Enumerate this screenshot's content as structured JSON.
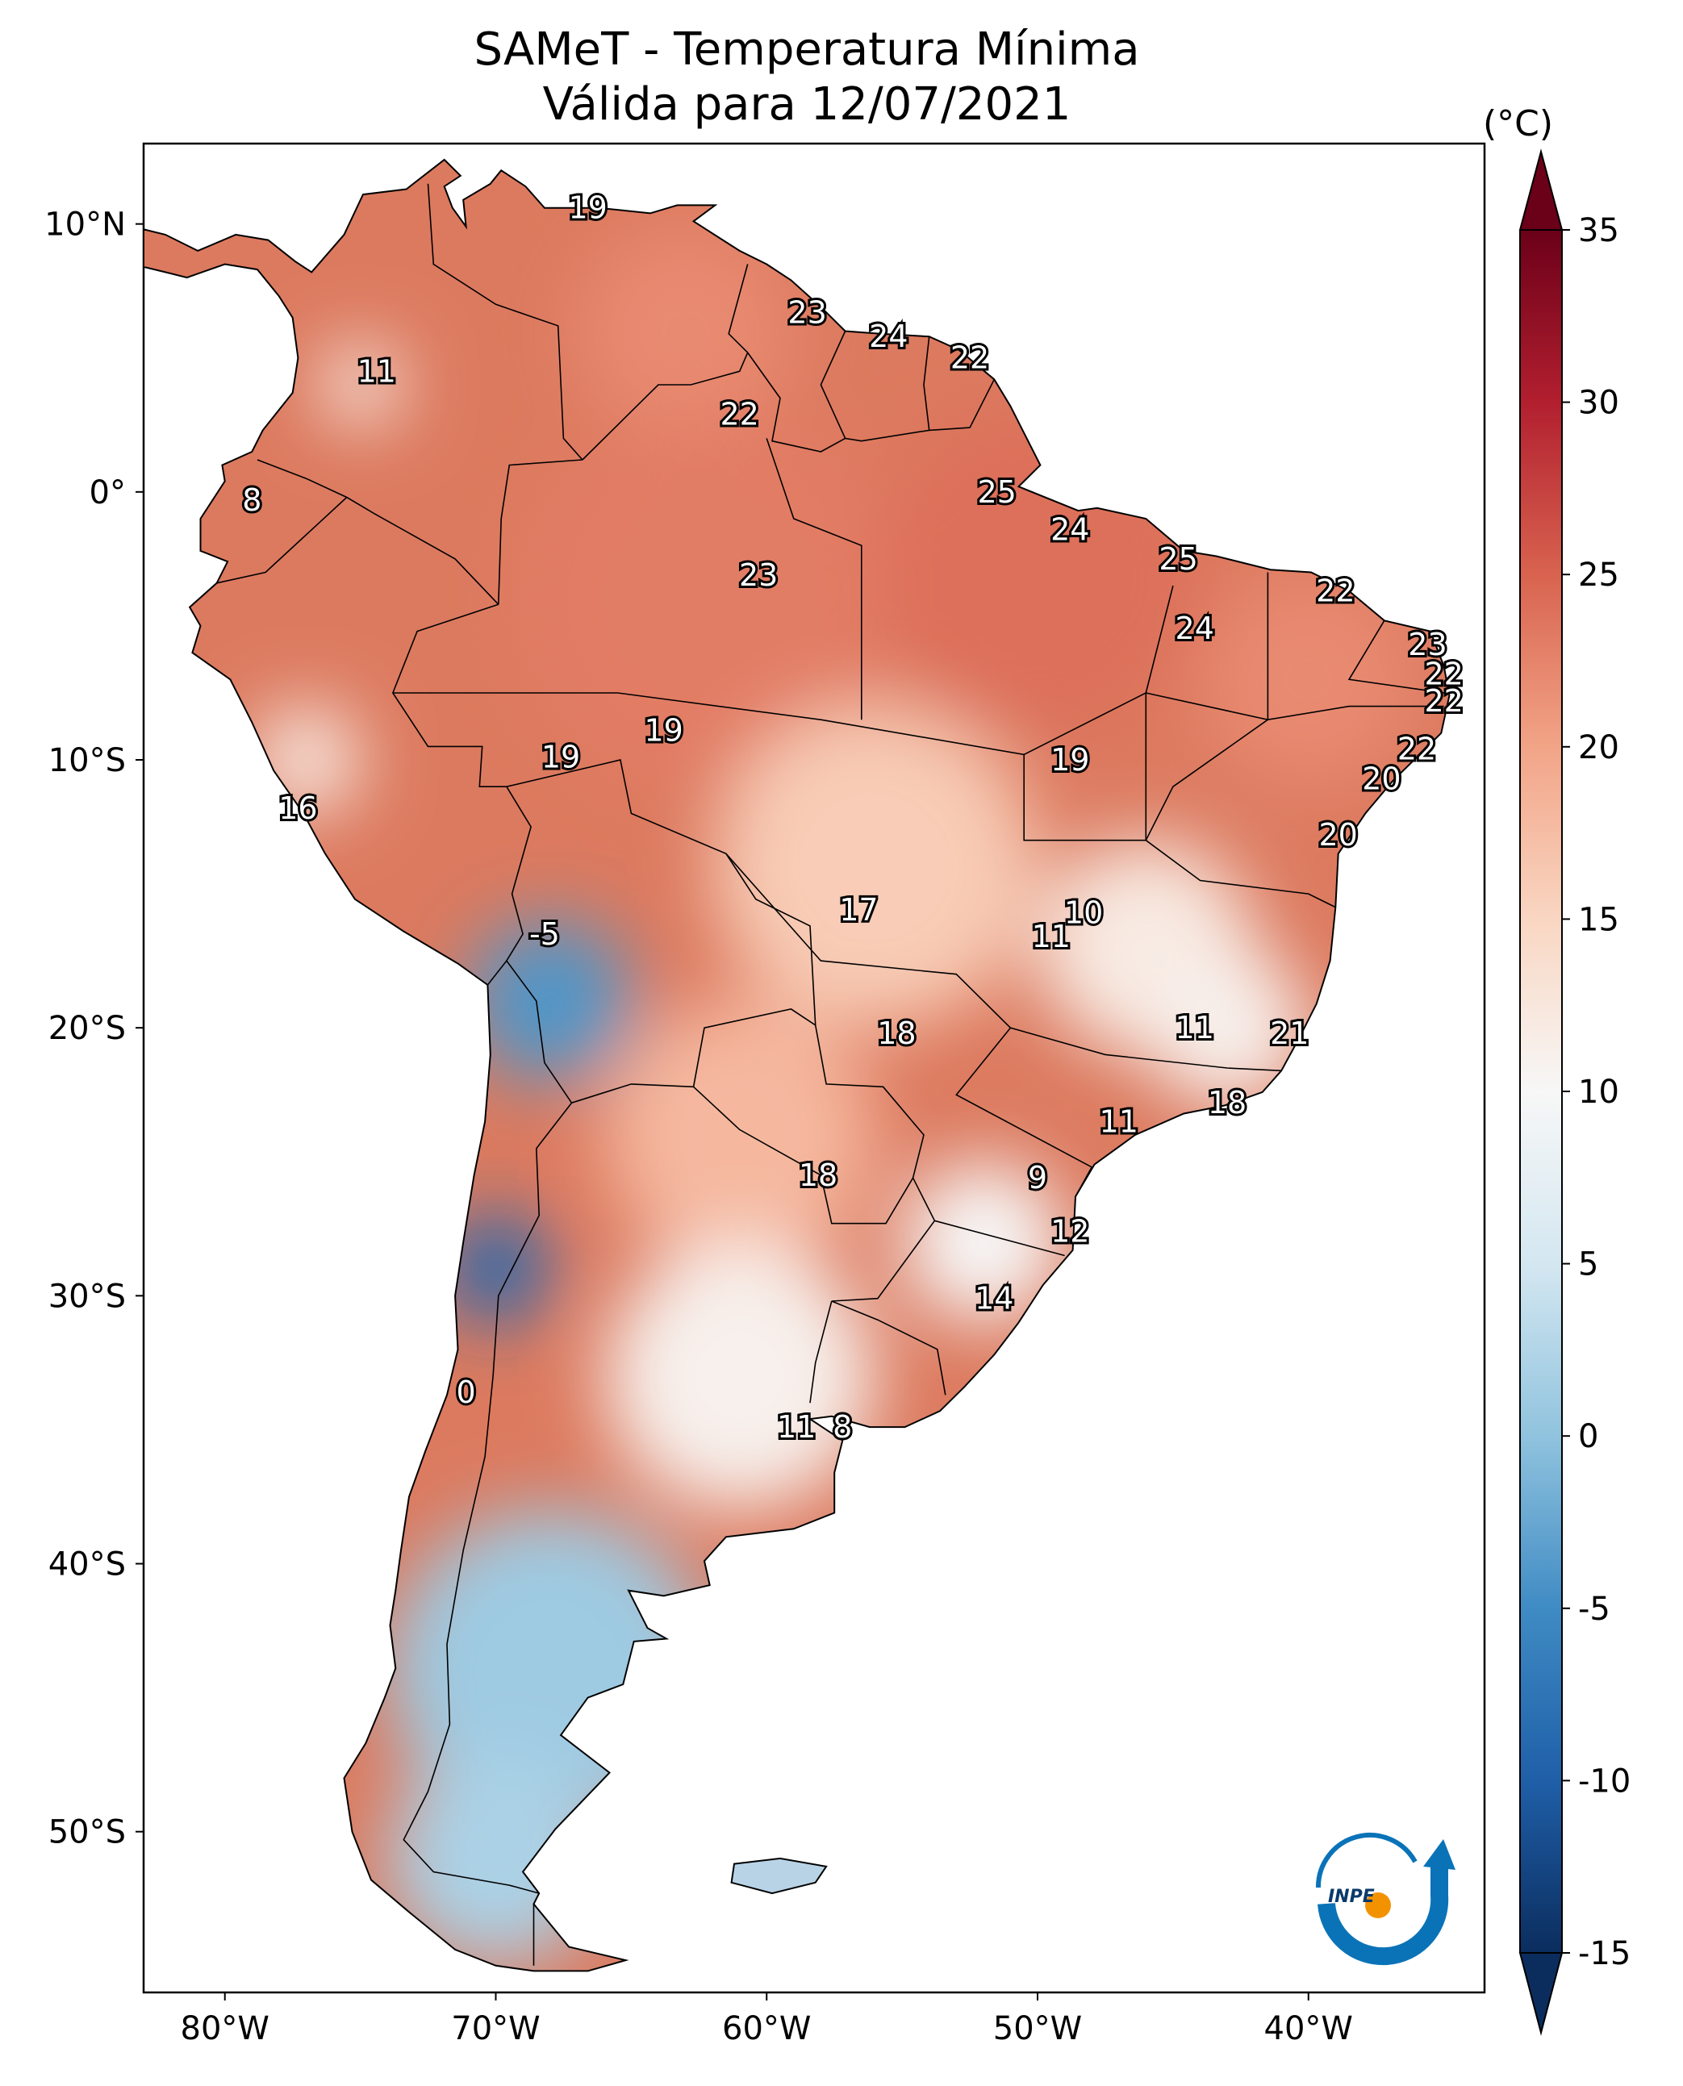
{
  "title": {
    "line1": "SAMeT - Temperatura Mínima",
    "line2": "Válida para 12/07/2021"
  },
  "colorbar": {
    "unit": "(°C)",
    "ticks": [
      "35",
      "30",
      "25",
      "20",
      "15",
      "10",
      "5",
      "0",
      "-5",
      "-10",
      "-15"
    ],
    "tick_values": [
      35,
      30,
      25,
      20,
      15,
      10,
      5,
      0,
      -5,
      -10,
      -15
    ],
    "range": [
      -15,
      35
    ],
    "colormap": "RdBu_r"
  },
  "axes": {
    "lat_labels": [
      "10°N",
      "0°",
      "10°S",
      "20°S",
      "30°S",
      "40°S",
      "50°S"
    ],
    "lat_values": [
      10,
      0,
      -10,
      -20,
      -30,
      -40,
      -50
    ],
    "lon_labels": [
      "80°W",
      "70°W",
      "60°W",
      "50°W",
      "40°W"
    ],
    "lon_values": [
      -80,
      -70,
      -60,
      -50,
      -40
    ],
    "extent": {
      "lon_min": -83,
      "lon_max": -33.5,
      "lat_min": -56,
      "lat_max": 13
    }
  },
  "point_labels": [
    {
      "text": "19",
      "lon": -66.6,
      "lat": 10.6
    },
    {
      "text": "11",
      "lon": -74.4,
      "lat": 4.5
    },
    {
      "text": "23",
      "lon": -58.5,
      "lat": 6.7
    },
    {
      "text": "24",
      "lon": -55.5,
      "lat": 5.8
    },
    {
      "text": "22",
      "lon": -52.5,
      "lat": 5.0
    },
    {
      "text": "22",
      "lon": -61.0,
      "lat": 2.9
    },
    {
      "text": "8",
      "lon": -79.0,
      "lat": -0.3
    },
    {
      "text": "25",
      "lon": -51.5,
      "lat": 0.0
    },
    {
      "text": "24",
      "lon": -48.8,
      "lat": -1.4
    },
    {
      "text": "25",
      "lon": -44.8,
      "lat": -2.5
    },
    {
      "text": "23",
      "lon": -60.3,
      "lat": -3.1
    },
    {
      "text": "22",
      "lon": -39.0,
      "lat": -3.7
    },
    {
      "text": "24",
      "lon": -44.2,
      "lat": -5.1
    },
    {
      "text": "23",
      "lon": -35.6,
      "lat": -5.7
    },
    {
      "text": "22",
      "lon": -35.0,
      "lat": -6.8
    },
    {
      "text": "22",
      "lon": -35.0,
      "lat": -7.8
    },
    {
      "text": "19",
      "lon": -63.8,
      "lat": -8.9
    },
    {
      "text": "19",
      "lon": -67.6,
      "lat": -9.9
    },
    {
      "text": "19",
      "lon": -48.8,
      "lat": -10.0
    },
    {
      "text": "22",
      "lon": -36.0,
      "lat": -9.6
    },
    {
      "text": "20",
      "lon": -37.3,
      "lat": -10.7
    },
    {
      "text": "16",
      "lon": -77.3,
      "lat": -11.8
    },
    {
      "text": "20",
      "lon": -38.9,
      "lat": -12.8
    },
    {
      "text": "17",
      "lon": -56.6,
      "lat": -15.6
    },
    {
      "text": "10",
      "lon": -48.3,
      "lat": -15.7
    },
    {
      "text": "11",
      "lon": -49.5,
      "lat": -16.6
    },
    {
      "text": "-5",
      "lon": -68.2,
      "lat": -16.5
    },
    {
      "text": "11",
      "lon": -44.2,
      "lat": -20.0
    },
    {
      "text": "18",
      "lon": -55.2,
      "lat": -20.2
    },
    {
      "text": "21",
      "lon": -40.7,
      "lat": -20.2
    },
    {
      "text": "18",
      "lon": -43.0,
      "lat": -22.8
    },
    {
      "text": "11",
      "lon": -47.0,
      "lat": -23.5
    },
    {
      "text": "18",
      "lon": -58.1,
      "lat": -25.5
    },
    {
      "text": "9",
      "lon": -50.0,
      "lat": -25.6
    },
    {
      "text": "12",
      "lon": -48.8,
      "lat": -27.6
    },
    {
      "text": "14",
      "lon": -51.6,
      "lat": -30.1
    },
    {
      "text": "0",
      "lon": -71.1,
      "lat": -33.6
    },
    {
      "text": "11",
      "lon": -58.9,
      "lat": -34.9
    },
    {
      "text": "8",
      "lon": -57.2,
      "lat": -34.9
    }
  ],
  "map_regions": [
    {
      "name": "caribbean-north",
      "lon": -63,
      "lat": 6,
      "temp": 22,
      "r": 4
    },
    {
      "name": "amazon",
      "lon": -62,
      "lat": -4,
      "temp": 23,
      "r": 7
    },
    {
      "name": "east-amazon",
      "lon": -50,
      "lat": -3,
      "temp": 24,
      "r": 6
    },
    {
      "name": "northeast",
      "lon": -40,
      "lat": -7,
      "temp": 22,
      "r": 4
    },
    {
      "name": "central-west",
      "lon": -56,
      "lat": -14,
      "temp": 16,
      "r": 6
    },
    {
      "name": "central-plateau",
      "lon": -46,
      "lat": -17,
      "temp": 12,
      "r": 4
    },
    {
      "name": "minas",
      "lon": -43,
      "lat": -20,
      "temp": 11,
      "r": 3
    },
    {
      "name": "chaco",
      "lon": -61,
      "lat": -24,
      "temp": 18,
      "r": 5
    },
    {
      "name": "pampas",
      "lon": -61,
      "lat": -33,
      "temp": 11,
      "r": 5
    },
    {
      "name": "patagonia",
      "lon": -68,
      "lat": -44,
      "temp": 1,
      "r": 6
    },
    {
      "name": "south-patagonia",
      "lon": -70,
      "lat": -51,
      "temp": 2,
      "r": 4
    },
    {
      "name": "altiplano",
      "lon": -68,
      "lat": -19,
      "temp": -4,
      "r": 3
    },
    {
      "name": "andes-south",
      "lon": -70,
      "lat": -29,
      "temp": -9,
      "r": 2
    },
    {
      "name": "peru-coast",
      "lon": -77,
      "lat": -10,
      "temp": 12,
      "r": 2
    },
    {
      "name": "colombia-andes",
      "lon": -75,
      "lat": 4,
      "temp": 12,
      "r": 1.5
    },
    {
      "name": "south-brazil",
      "lon": -52,
      "lat": -28,
      "temp": 10,
      "r": 3
    }
  ],
  "logo": {
    "text": "INPE"
  }
}
